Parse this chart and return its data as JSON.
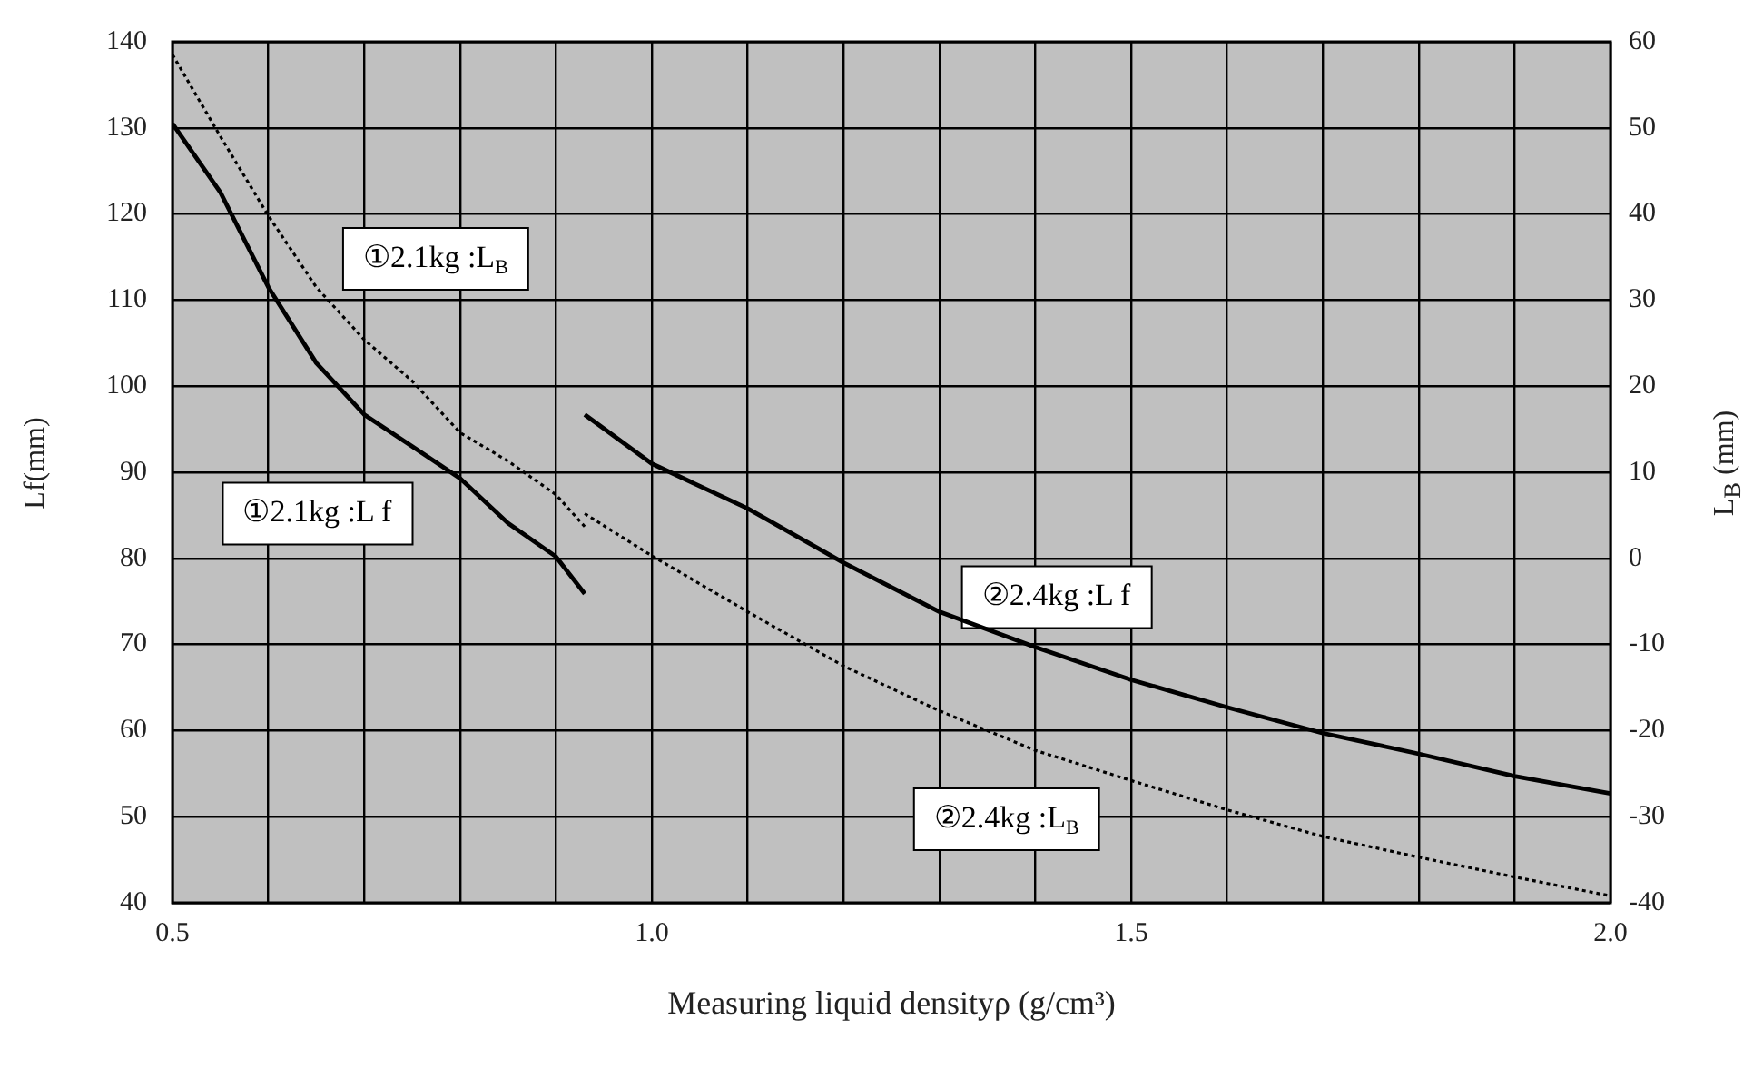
{
  "chart_data": {
    "type": "line",
    "xlabel": "Measuring liquid densityρ (g/cm³)",
    "ylabel": "Lf(mm)",
    "y2label": "L$_{B}$ (mm)",
    "xlim": [
      0.5,
      2.0
    ],
    "xticks": [
      0.5,
      {
        "value": 0.6,
        "label": null
      },
      {
        "value": 0.7,
        "label": null
      },
      {
        "value": 0.8,
        "label": null
      },
      {
        "value": 0.9,
        "label": null
      },
      {
        "value": 1.0,
        "label": "1.0"
      },
      {
        "value": 1.1,
        "label": null
      },
      {
        "value": 1.2,
        "label": null
      },
      {
        "value": 1.3,
        "label": null
      },
      {
        "value": 1.4,
        "label": null
      },
      1.5,
      {
        "value": 1.6,
        "label": null
      },
      {
        "value": 1.7,
        "label": null
      },
      {
        "value": 1.8,
        "label": null
      },
      {
        "value": 1.9,
        "label": null
      },
      {
        "value": 2.0,
        "label": "2.0"
      }
    ],
    "ylim": [
      40,
      140
    ],
    "yticks": [
      40,
      50,
      60,
      70,
      80,
      90,
      100,
      110,
      120,
      130,
      140
    ],
    "y2lim": [
      -40,
      60
    ],
    "y2ticks": [
      -40,
      -30,
      -20,
      -10,
      0,
      10,
      20,
      30,
      40,
      50,
      60
    ],
    "grid": true,
    "legend": false,
    "marker": "none",
    "series": [
      {
        "name": "①2.1kg :L f",
        "color": "#000000",
        "line_style": "solid",
        "x": [
          0.5,
          0.55,
          0.6,
          0.65,
          0.7,
          0.75,
          0.8,
          0.85,
          0.9,
          0.93
        ],
        "values": [
          130.5,
          122.5,
          111.5,
          102.7,
          96.7,
          93,
          89.3,
          84.1,
          80.2,
          75.9
        ]
      },
      {
        "name": "①2.1kg :L$_{B}$",
        "color": "#000000",
        "line_style": "dotted",
        "axis": "y2",
        "x": [
          0.5,
          0.55,
          0.6,
          0.65,
          0.7,
          0.75,
          0.8,
          0.85,
          0.9,
          0.93
        ],
        "values": [
          58.5,
          49,
          39.8,
          31.5,
          25.4,
          20.6,
          14.6,
          11.3,
          7.4,
          3.7
        ]
      },
      {
        "name": "②2.4kg :L f",
        "color": "#000000",
        "line_style": "solid",
        "x": [
          0.93,
          1.0,
          1.1,
          1.2,
          1.3,
          1.4,
          1.5,
          1.6,
          1.7,
          1.8,
          1.9,
          2.0
        ],
        "values": [
          96.7,
          91,
          85.8,
          79.5,
          73.8,
          69.7,
          65.9,
          62.7,
          59.7,
          57.3,
          54.7,
          52.7
        ]
      },
      {
        "name": "②2.4kg :L$_{B}$",
        "color": "#000000",
        "line_style": "dotted",
        "axis": "y2",
        "x": [
          0.93,
          1.0,
          1.1,
          1.2,
          1.3,
          1.4,
          1.5,
          1.6,
          1.7,
          1.8,
          1.9,
          2.0
        ],
        "values": [
          5.2,
          0.3,
          -6.2,
          -12.5,
          -17.7,
          -22.3,
          -25.8,
          -29.2,
          -32.3,
          -34.7,
          -37,
          -39.2
        ]
      }
    ]
  }
}
